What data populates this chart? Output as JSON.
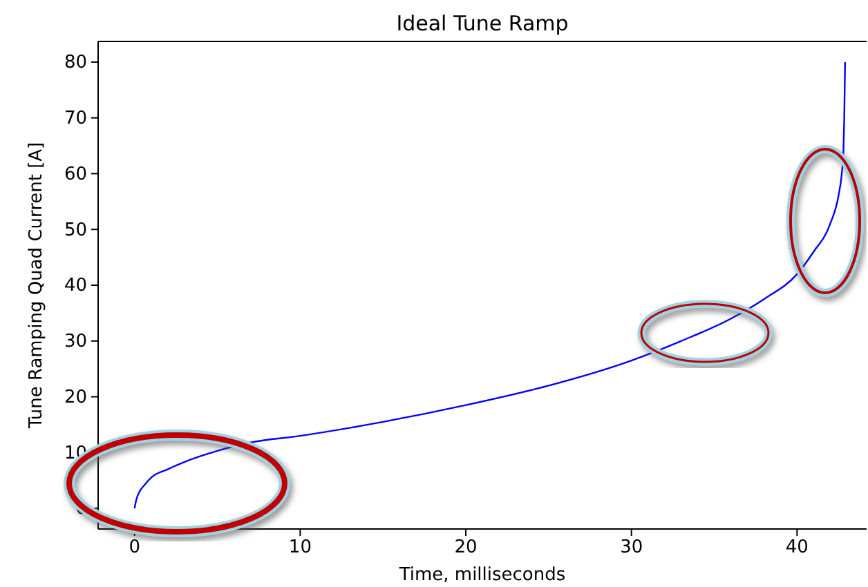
{
  "chart_data": {
    "type": "line",
    "title": "Ideal Tune Ramp",
    "xlabel": "Time, milliseconds",
    "ylabel": "Tune Ramping Quad Current [A]",
    "x": [
      0,
      0.1,
      0.3,
      0.6,
      1,
      2,
      3,
      5,
      7,
      10,
      15,
      20,
      25,
      30,
      33,
      36,
      38,
      40,
      41,
      42,
      42.5,
      42.7,
      42.8,
      42.85,
      42.9
    ],
    "series": [
      {
        "color": "#0000ff",
        "values": [
          0,
          1.5,
          3,
          4.2,
          5.5,
          7,
          8.3,
          10.3,
          11.8,
          13,
          15.5,
          18.5,
          22,
          26.5,
          30,
          34,
          37.5,
          42,
          46,
          51,
          56,
          60,
          64,
          70,
          80
        ]
      }
    ],
    "xlim": [
      -2.2,
      44.2
    ],
    "xticks": [
      0,
      10,
      20,
      30,
      40
    ],
    "ylim": [
      -3.7,
      83.7
    ],
    "yticks": [
      0,
      10,
      20,
      30,
      40,
      50,
      60,
      70,
      80
    ],
    "grid": false
  }
}
